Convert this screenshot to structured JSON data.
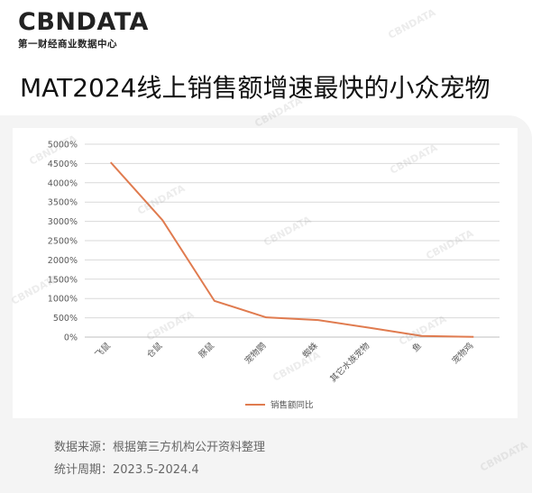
{
  "header": {
    "logo_text": "CBNDATA",
    "logo_subtitle": "第一财经商业数据中心"
  },
  "page_title": "MAT2024线上销售额增速最快的小众宠物",
  "footer": {
    "source": "数据来源：根据第三方机构公开资料整理",
    "period": "统计周期：2023.5-2024.4"
  },
  "colors": {
    "series": "#e07b4f",
    "grid": "#d9d9d9",
    "axis": "#bfbfbf",
    "text": "#595959"
  },
  "chart_data": {
    "type": "line",
    "title": "",
    "xlabel": "",
    "ylabel": "",
    "categories": [
      "飞鼠",
      "仓鼠",
      "豚鼠",
      "宠物鹦",
      "蜘蛛",
      "其它水族宠物",
      "鱼",
      "宠物鸡"
    ],
    "series": [
      {
        "name": "销售额同比",
        "values": [
          4530,
          3030,
          940,
          510,
          440,
          240,
          30,
          5
        ]
      }
    ],
    "ylim": [
      0,
      5000
    ],
    "yticks": [
      0,
      500,
      1000,
      1500,
      2000,
      2500,
      3000,
      3500,
      4000,
      4500,
      5000
    ],
    "ytick_labels": [
      "0%",
      "500%",
      "1000%",
      "1500%",
      "2000%",
      "2500%",
      "3000%",
      "3500%",
      "4000%",
      "4500%",
      "5000%"
    ],
    "grid": true,
    "legend_position": "bottom-center"
  }
}
